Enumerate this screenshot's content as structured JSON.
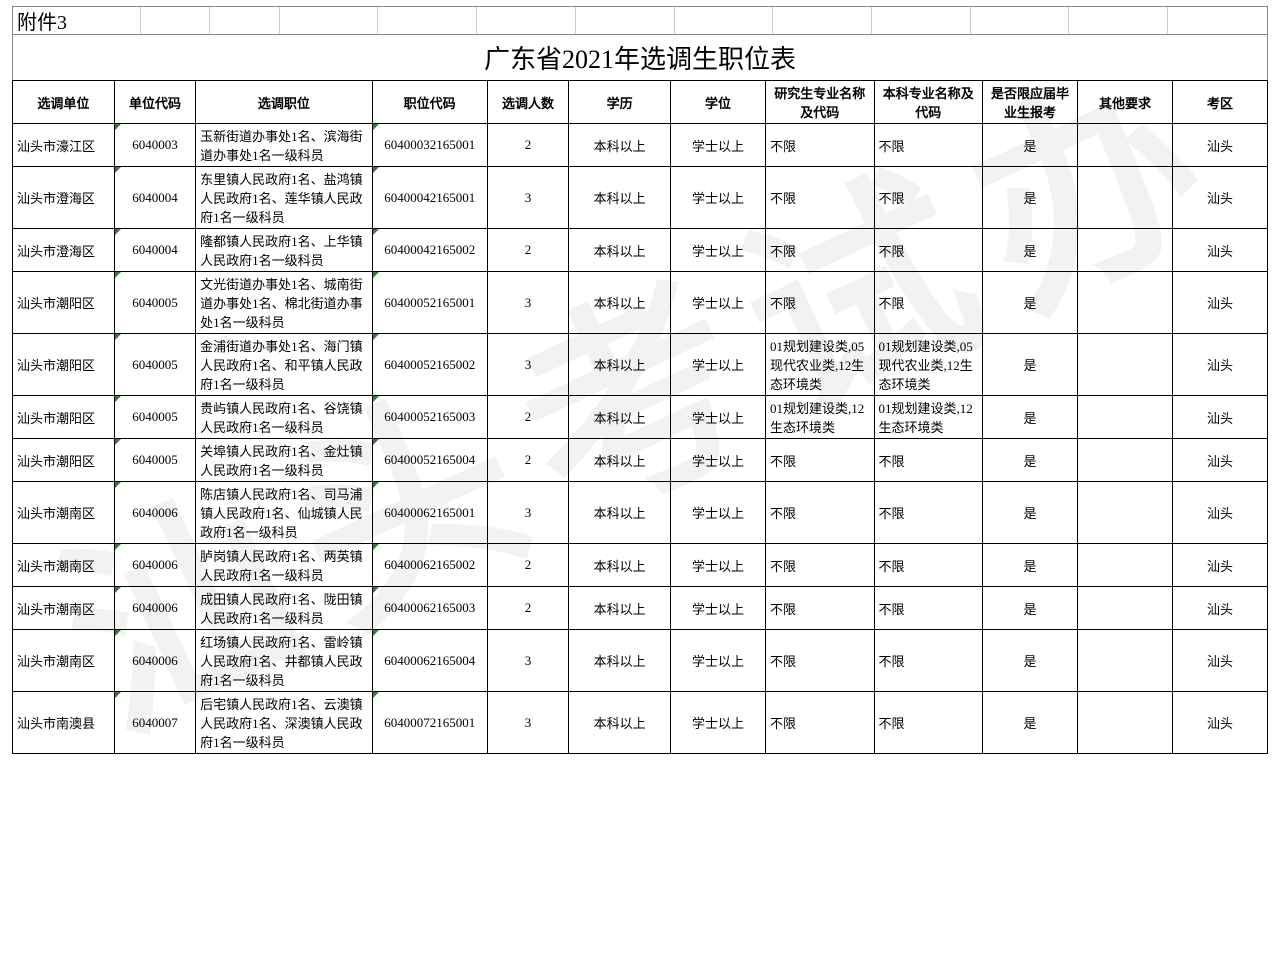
{
  "attachment_label": "附件3",
  "title": "广东省2021年选调生职位表",
  "watermark_text": "汕头考试办",
  "columns": [
    "选调单位",
    "单位代码",
    "选调职位",
    "职位代码",
    "选调人数",
    "学历",
    "学位",
    "研究生专业名称及代码",
    "本科专业名称及代码",
    "是否限应届毕业生报考",
    "其他要求",
    "考区"
  ],
  "column_align": [
    "l",
    "c",
    "l",
    "c",
    "c",
    "c",
    "c",
    "l",
    "l",
    "c",
    "c",
    "c"
  ],
  "rows": [
    [
      "汕头市濠江区",
      "6040003",
      "玉新街道办事处1名、滨海街道办事处1名一级科员",
      "60400032165001",
      "2",
      "本科以上",
      "学士以上",
      "不限",
      "不限",
      "是",
      "",
      "汕头"
    ],
    [
      "汕头市澄海区",
      "6040004",
      "东里镇人民政府1名、盐鸿镇人民政府1名、莲华镇人民政府1名一级科员",
      "60400042165001",
      "3",
      "本科以上",
      "学士以上",
      "不限",
      "不限",
      "是",
      "",
      "汕头"
    ],
    [
      "汕头市澄海区",
      "6040004",
      "隆都镇人民政府1名、上华镇人民政府1名一级科员",
      "60400042165002",
      "2",
      "本科以上",
      "学士以上",
      "不限",
      "不限",
      "是",
      "",
      "汕头"
    ],
    [
      "汕头市潮阳区",
      "6040005",
      "文光街道办事处1名、城南街道办事处1名、棉北街道办事处1名一级科员",
      "60400052165001",
      "3",
      "本科以上",
      "学士以上",
      "不限",
      "不限",
      "是",
      "",
      "汕头"
    ],
    [
      "汕头市潮阳区",
      "6040005",
      "金浦街道办事处1名、海门镇人民政府1名、和平镇人民政府1名一级科员",
      "60400052165002",
      "3",
      "本科以上",
      "学士以上",
      "01规划建设类,05现代农业类,12生态环境类",
      "01规划建设类,05现代农业类,12生态环境类",
      "是",
      "",
      "汕头"
    ],
    [
      "汕头市潮阳区",
      "6040005",
      "贵屿镇人民政府1名、谷饶镇人民政府1名一级科员",
      "60400052165003",
      "2",
      "本科以上",
      "学士以上",
      "01规划建设类,12生态环境类",
      "01规划建设类,12生态环境类",
      "是",
      "",
      "汕头"
    ],
    [
      "汕头市潮阳区",
      "6040005",
      "关埠镇人民政府1名、金灶镇人民政府1名一级科员",
      "60400052165004",
      "2",
      "本科以上",
      "学士以上",
      "不限",
      "不限",
      "是",
      "",
      "汕头"
    ],
    [
      "汕头市潮南区",
      "6040006",
      "陈店镇人民政府1名、司马浦镇人民政府1名、仙城镇人民政府1名一级科员",
      "60400062165001",
      "3",
      "本科以上",
      "学士以上",
      "不限",
      "不限",
      "是",
      "",
      "汕头"
    ],
    [
      "汕头市潮南区",
      "6040006",
      "胪岗镇人民政府1名、两英镇人民政府1名一级科员",
      "60400062165002",
      "2",
      "本科以上",
      "学士以上",
      "不限",
      "不限",
      "是",
      "",
      "汕头"
    ],
    [
      "汕头市潮南区",
      "6040006",
      "成田镇人民政府1名、陇田镇人民政府1名一级科员",
      "60400062165003",
      "2",
      "本科以上",
      "学士以上",
      "不限",
      "不限",
      "是",
      "",
      "汕头"
    ],
    [
      "汕头市潮南区",
      "6040006",
      "红场镇人民政府1名、雷岭镇人民政府1名、井都镇人民政府1名一级科员",
      "60400062165004",
      "3",
      "本科以上",
      "学士以上",
      "不限",
      "不限",
      "是",
      "",
      "汕头"
    ],
    [
      "汕头市南澳县",
      "6040007",
      "后宅镇人民政府1名、云澳镇人民政府1名、深澳镇人民政府1名一级科员",
      "60400072165001",
      "3",
      "本科以上",
      "学士以上",
      "不限",
      "不限",
      "是",
      "",
      "汕头"
    ]
  ],
  "styling": {
    "background_color": "#ffffff",
    "border_color": "#000000",
    "top_border_color": "#888888",
    "corner_mark_color": "#3a7a3a",
    "watermark_color": "rgba(0,0,0,0.05)",
    "title_fontsize": 26,
    "header_fontsize": 13,
    "cell_fontsize": 13,
    "font_family": "SimSun"
  },
  "top_grid_widths": [
    130,
    70,
    70,
    100,
    100,
    100,
    100,
    100,
    100,
    100,
    100,
    100,
    100
  ]
}
